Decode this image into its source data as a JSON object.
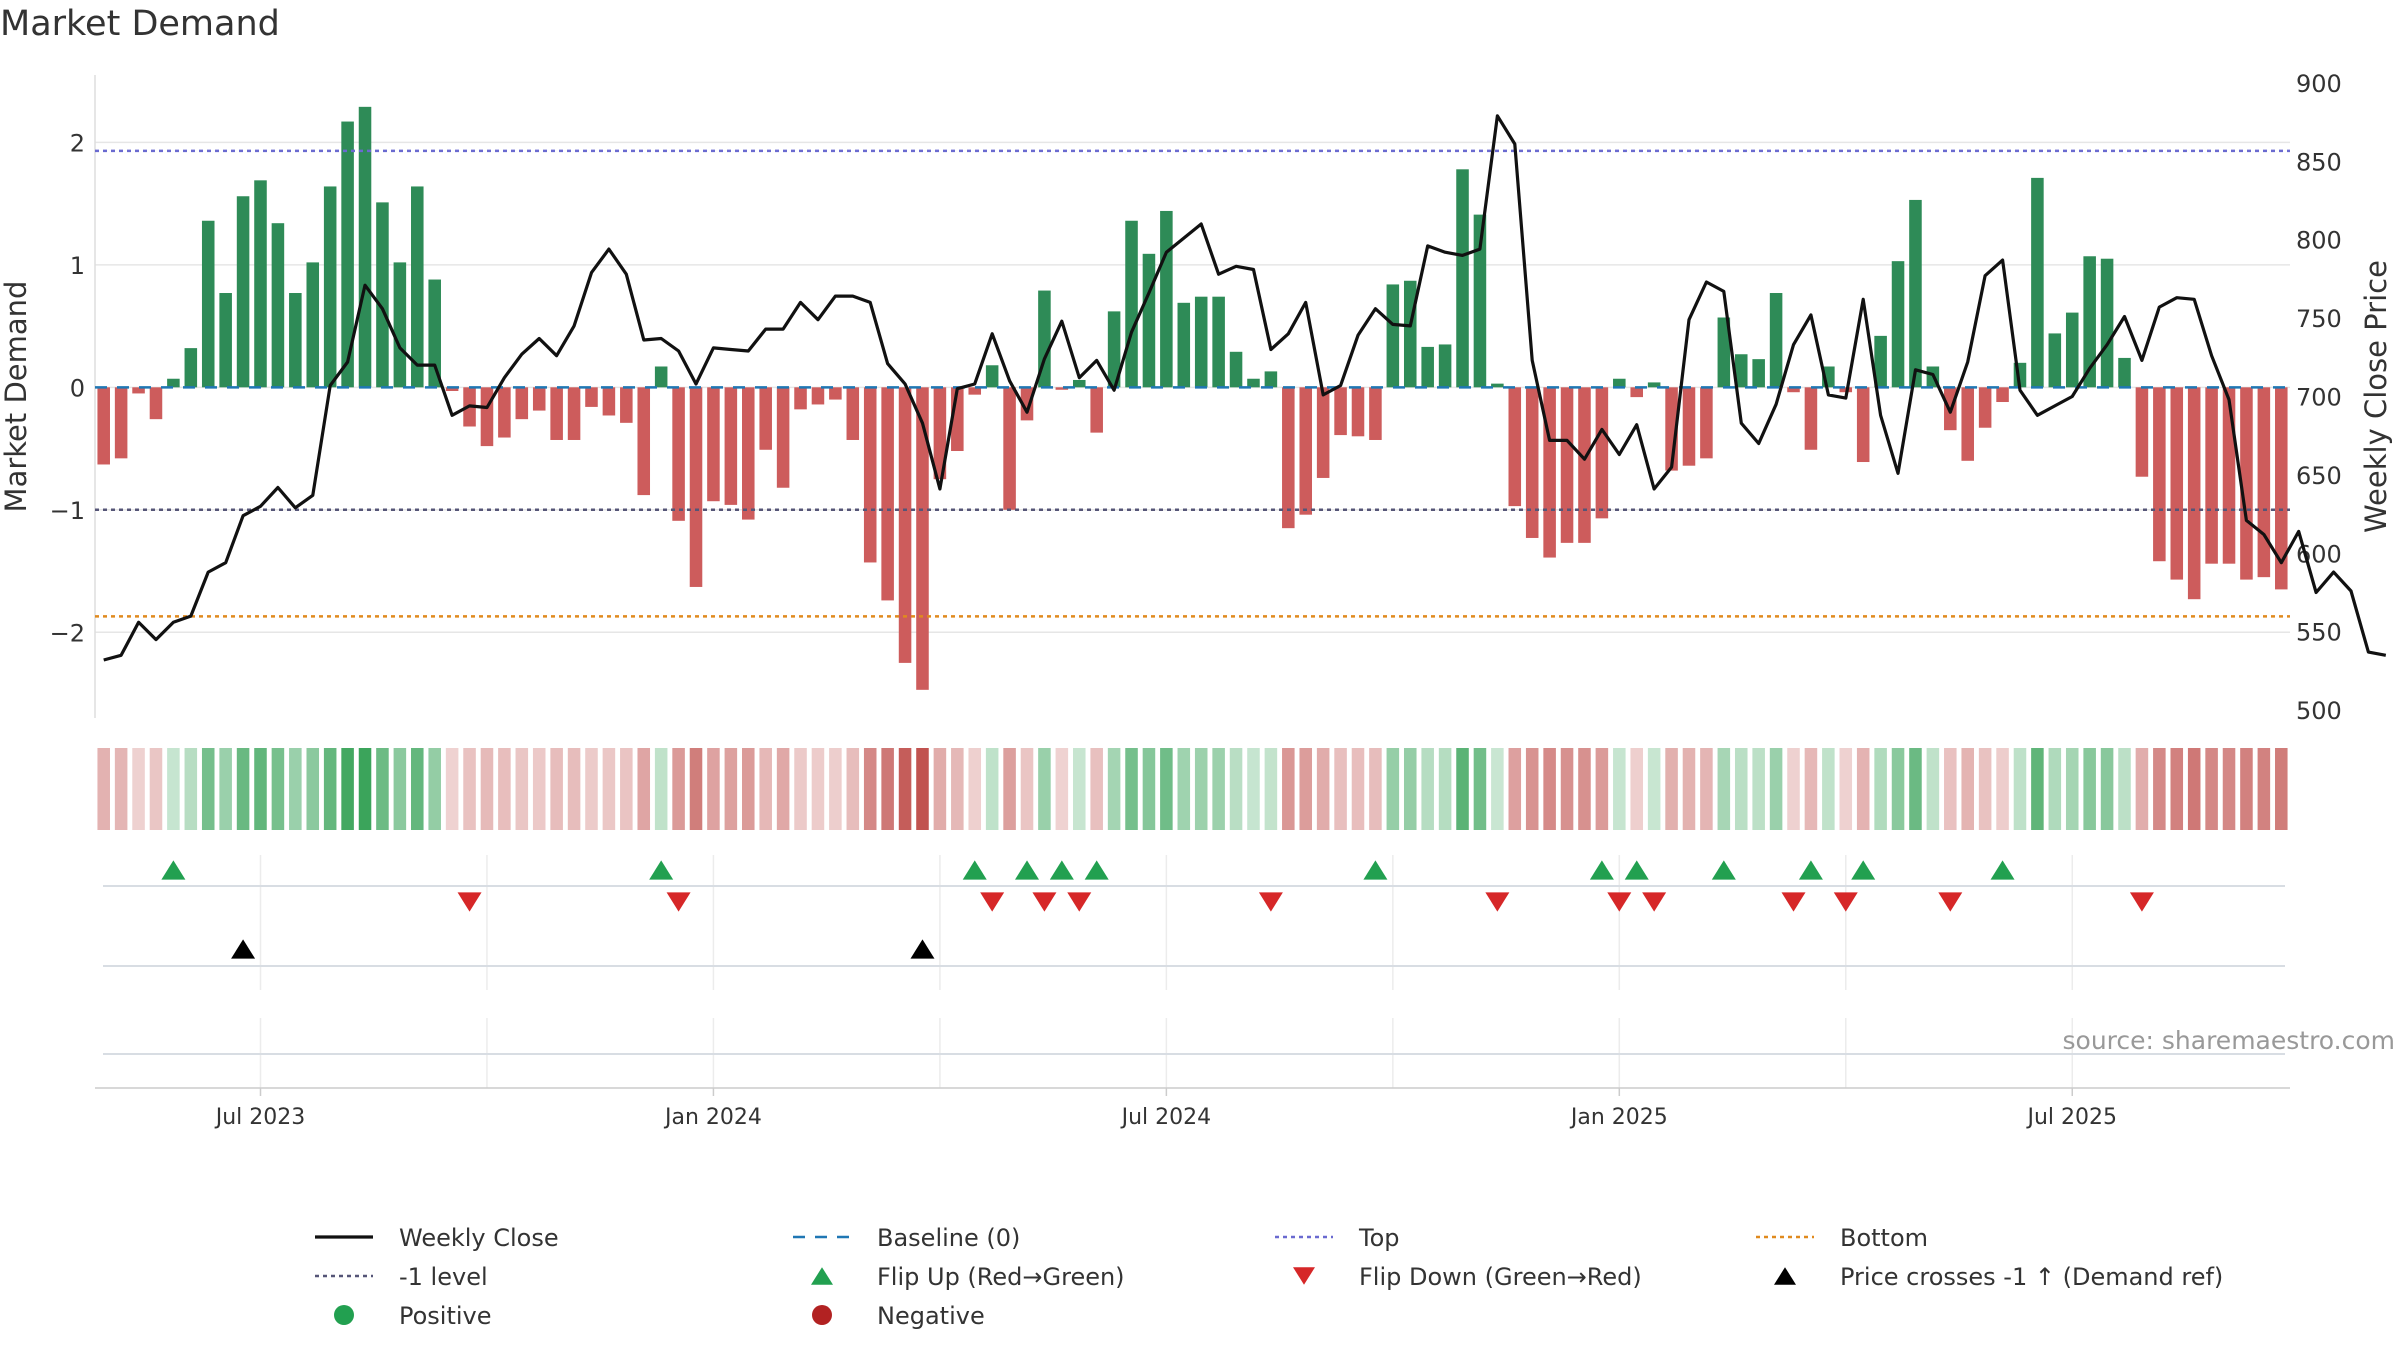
{
  "title": "Market Demand",
  "source": "source: sharemaestro.com",
  "colors": {
    "positive": "#2e8b57",
    "negative": "#cd5c5c",
    "price": "#111111",
    "baseline": "#1f77b4",
    "top": "#6a6ad0",
    "bottom": "#e08a1e",
    "minus_one": "#555577",
    "flip_up": "#22a050",
    "flip_down": "#d62728",
    "cross": "#000000"
  },
  "chart_data": {
    "type": "bar",
    "left_axis": {
      "label": "Market Demand",
      "ticks": [
        -2,
        -1,
        0,
        1,
        2
      ],
      "tick_labels": [
        "−2",
        "−1",
        "0",
        "1",
        "2"
      ],
      "range": [
        -2.7,
        2.55
      ]
    },
    "right_axis": {
      "label": "Weekly Close Price",
      "ticks": [
        500,
        550,
        600,
        650,
        700,
        750,
        800,
        850,
        900
      ],
      "range": [
        495,
        905
      ]
    },
    "x_ticks": [
      {
        "label": "Jul 2023",
        "week": 9.5
      },
      {
        "label": "Jan 2024",
        "week": 35.5
      },
      {
        "label": "Jul 2024",
        "week": 61.5
      },
      {
        "label": "Jan 2025",
        "week": 87.5
      },
      {
        "label": "Jul 2025",
        "week": 113.5
      }
    ],
    "levels": {
      "top": 1.93,
      "bottom": -1.87,
      "minus_one": -1.0,
      "baseline": 0
    },
    "demand": [
      -0.63,
      -0.58,
      -0.05,
      -0.26,
      0.07,
      0.32,
      1.36,
      0.77,
      1.56,
      1.69,
      1.34,
      0.77,
      1.02,
      1.64,
      2.17,
      2.29,
      1.51,
      1.02,
      1.64,
      0.88,
      -0.03,
      -0.32,
      -0.48,
      -0.41,
      -0.26,
      -0.19,
      -0.43,
      -0.43,
      -0.16,
      -0.23,
      -0.29,
      -0.88,
      0.17,
      -1.09,
      -1.63,
      -0.93,
      -0.96,
      -1.08,
      -0.51,
      -0.82,
      -0.18,
      -0.14,
      -0.1,
      -0.43,
      -1.43,
      -1.74,
      -2.25,
      -2.47,
      -0.75,
      -0.52,
      -0.06,
      0.18,
      -1.0,
      -0.27,
      0.79,
      -0.02,
      0.06,
      -0.37,
      0.62,
      1.36,
      1.09,
      1.44,
      0.69,
      0.74,
      0.74,
      0.29,
      0.07,
      0.13,
      -1.15,
      -1.04,
      -0.74,
      -0.39,
      -0.4,
      -0.43,
      0.84,
      0.87,
      0.33,
      0.35,
      1.78,
      1.41,
      0.03,
      -0.97,
      -1.23,
      -1.39,
      -1.27,
      -1.27,
      -1.07,
      0.07,
      -0.08,
      0.04,
      -0.68,
      -0.64,
      -0.58,
      0.57,
      0.27,
      0.23,
      0.77,
      -0.04,
      -0.51,
      0.17,
      -0.04,
      -0.61,
      0.42,
      1.03,
      1.53,
      0.17,
      -0.35,
      -0.6,
      -0.33,
      -0.12,
      0.2,
      1.71,
      0.44,
      0.61,
      1.07,
      1.05,
      0.24,
      -0.73,
      -1.42,
      -1.57,
      -1.73,
      -1.44,
      -1.44,
      -1.57,
      -1.55,
      -1.65
    ],
    "price": [
      532,
      535,
      556,
      545,
      556,
      560,
      588,
      594,
      624,
      630,
      642,
      629,
      637,
      707,
      722,
      771,
      756,
      731,
      720,
      720,
      688,
      694,
      693,
      712,
      727,
      737,
      726,
      745,
      779,
      794,
      778,
      736,
      737,
      729,
      708,
      731,
      730,
      729,
      743,
      743,
      760,
      749,
      764,
      764,
      760,
      721,
      708,
      683,
      641,
      705,
      708,
      740,
      710,
      690,
      724,
      748,
      712,
      723,
      704,
      741,
      766,
      792,
      801,
      810,
      778,
      783,
      781,
      730,
      740,
      760,
      701,
      707,
      739,
      756,
      746,
      745,
      796,
      792,
      790,
      794,
      879,
      861,
      723,
      672,
      672,
      660,
      679,
      663,
      682,
      641,
      655,
      749,
      773,
      767,
      683,
      670,
      695,
      733,
      752,
      701,
      699,
      762,
      688,
      651,
      717,
      714,
      690,
      722,
      777,
      787,
      704,
      688,
      694,
      700,
      718,
      733,
      751,
      723,
      757,
      763,
      762,
      726,
      698,
      621,
      612,
      594,
      614,
      575,
      588,
      576,
      537,
      535
    ],
    "flip_up_weeks": [
      4,
      32,
      50,
      53,
      55,
      57,
      73,
      86,
      88,
      93,
      98,
      101,
      109
    ],
    "flip_down_weeks": [
      21,
      33,
      51,
      54,
      56,
      67,
      80,
      87,
      89,
      97,
      100,
      106,
      117
    ],
    "price_cross_weeks": [
      8,
      47
    ]
  },
  "legend": [
    {
      "label": "Weekly Close",
      "marker": "solid-line"
    },
    {
      "label": "Baseline (0)",
      "marker": "dashed-line"
    },
    {
      "label": "Top",
      "marker": "dotted-line-blue"
    },
    {
      "label": "Bottom",
      "marker": "dotted-line-orange"
    },
    {
      "label": "-1 level",
      "marker": "dotted-line-gray"
    },
    {
      "label": "Flip Up (Red→Green)",
      "marker": "triangle-up-green"
    },
    {
      "label": "Flip Down (Green→Red)",
      "marker": "triangle-down-red"
    },
    {
      "label": "Price crosses -1 ↑ (Demand ref)",
      "marker": "triangle-up-black"
    },
    {
      "label": "Positive",
      "marker": "circle-green"
    },
    {
      "label": "Negative",
      "marker": "circle-red"
    }
  ]
}
